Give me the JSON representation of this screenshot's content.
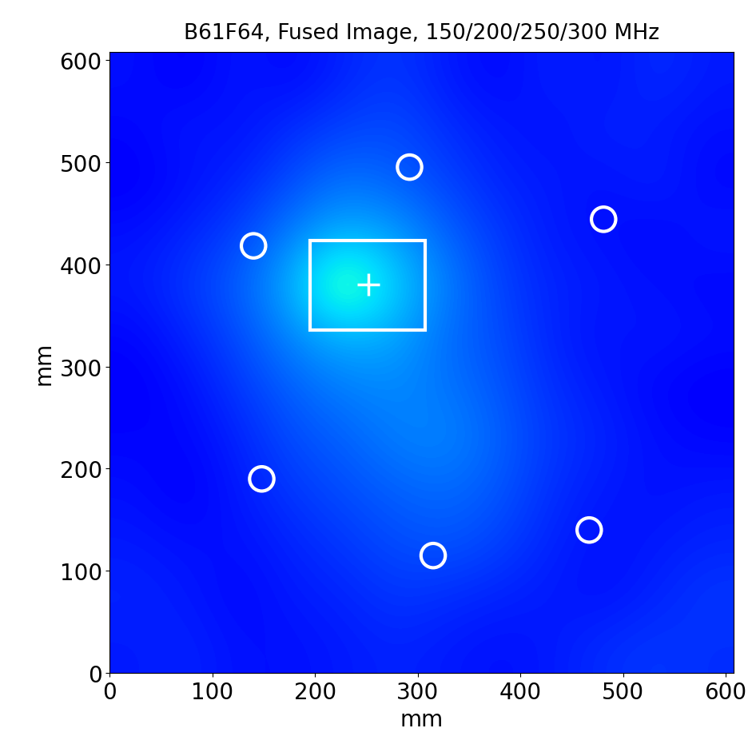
{
  "chart_data": {
    "type": "heatmap",
    "title": "B61F64, Fused Image, 150/200/250/300 MHz",
    "x_label": "mm",
    "y_label": "mm",
    "xlim": [
      0,
      608
    ],
    "ylim": [
      0,
      608
    ],
    "xticks": [
      0,
      100,
      200,
      300,
      400,
      500,
      600
    ],
    "yticks": [
      0,
      100,
      200,
      300,
      400,
      500,
      600
    ],
    "color": "jet",
    "clim": [
      0,
      1
    ],
    "cells": [
      [
        0.14,
        0.12,
        0.15,
        0.13,
        0.16,
        0.18,
        0.15,
        0.13,
        0.16,
        0.14,
        0.17,
        0.15
      ],
      [
        0.13,
        0.15,
        0.14,
        0.17,
        0.19,
        0.2,
        0.17,
        0.15,
        0.14,
        0.16,
        0.15,
        0.14
      ],
      [
        0.12,
        0.14,
        0.16,
        0.2,
        0.24,
        0.22,
        0.19,
        0.16,
        0.15,
        0.14,
        0.16,
        0.13
      ],
      [
        0.14,
        0.16,
        0.19,
        0.25,
        0.3,
        0.28,
        0.22,
        0.18,
        0.15,
        0.14,
        0.13,
        0.15
      ],
      [
        0.15,
        0.18,
        0.22,
        0.3,
        0.45,
        0.33,
        0.25,
        0.19,
        0.16,
        0.15,
        0.14,
        0.13
      ],
      [
        0.13,
        0.16,
        0.2,
        0.26,
        0.3,
        0.29,
        0.23,
        0.2,
        0.16,
        0.14,
        0.15,
        0.14
      ],
      [
        0.12,
        0.14,
        0.18,
        0.22,
        0.25,
        0.26,
        0.24,
        0.21,
        0.17,
        0.15,
        0.13,
        0.12
      ],
      [
        0.13,
        0.13,
        0.16,
        0.2,
        0.22,
        0.25,
        0.26,
        0.22,
        0.18,
        0.16,
        0.14,
        0.13
      ],
      [
        0.14,
        0.12,
        0.15,
        0.18,
        0.2,
        0.22,
        0.23,
        0.21,
        0.17,
        0.15,
        0.14,
        0.15
      ],
      [
        0.15,
        0.14,
        0.14,
        0.16,
        0.18,
        0.2,
        0.21,
        0.19,
        0.16,
        0.14,
        0.15,
        0.16
      ],
      [
        0.16,
        0.15,
        0.13,
        0.15,
        0.16,
        0.18,
        0.17,
        0.16,
        0.15,
        0.14,
        0.16,
        0.18
      ],
      [
        0.15,
        0.16,
        0.14,
        0.14,
        0.15,
        0.16,
        0.15,
        0.14,
        0.15,
        0.17,
        0.18,
        0.17
      ]
    ],
    "circles": [
      [
        140,
        418
      ],
      [
        292,
        495
      ],
      [
        481,
        444
      ],
      [
        148,
        190
      ],
      [
        315,
        115
      ],
      [
        467,
        140
      ]
    ],
    "rectangle": {
      "x": [
        195,
        307
      ],
      "y": [
        336,
        423
      ]
    },
    "target": [
      252,
      380
    ]
  }
}
